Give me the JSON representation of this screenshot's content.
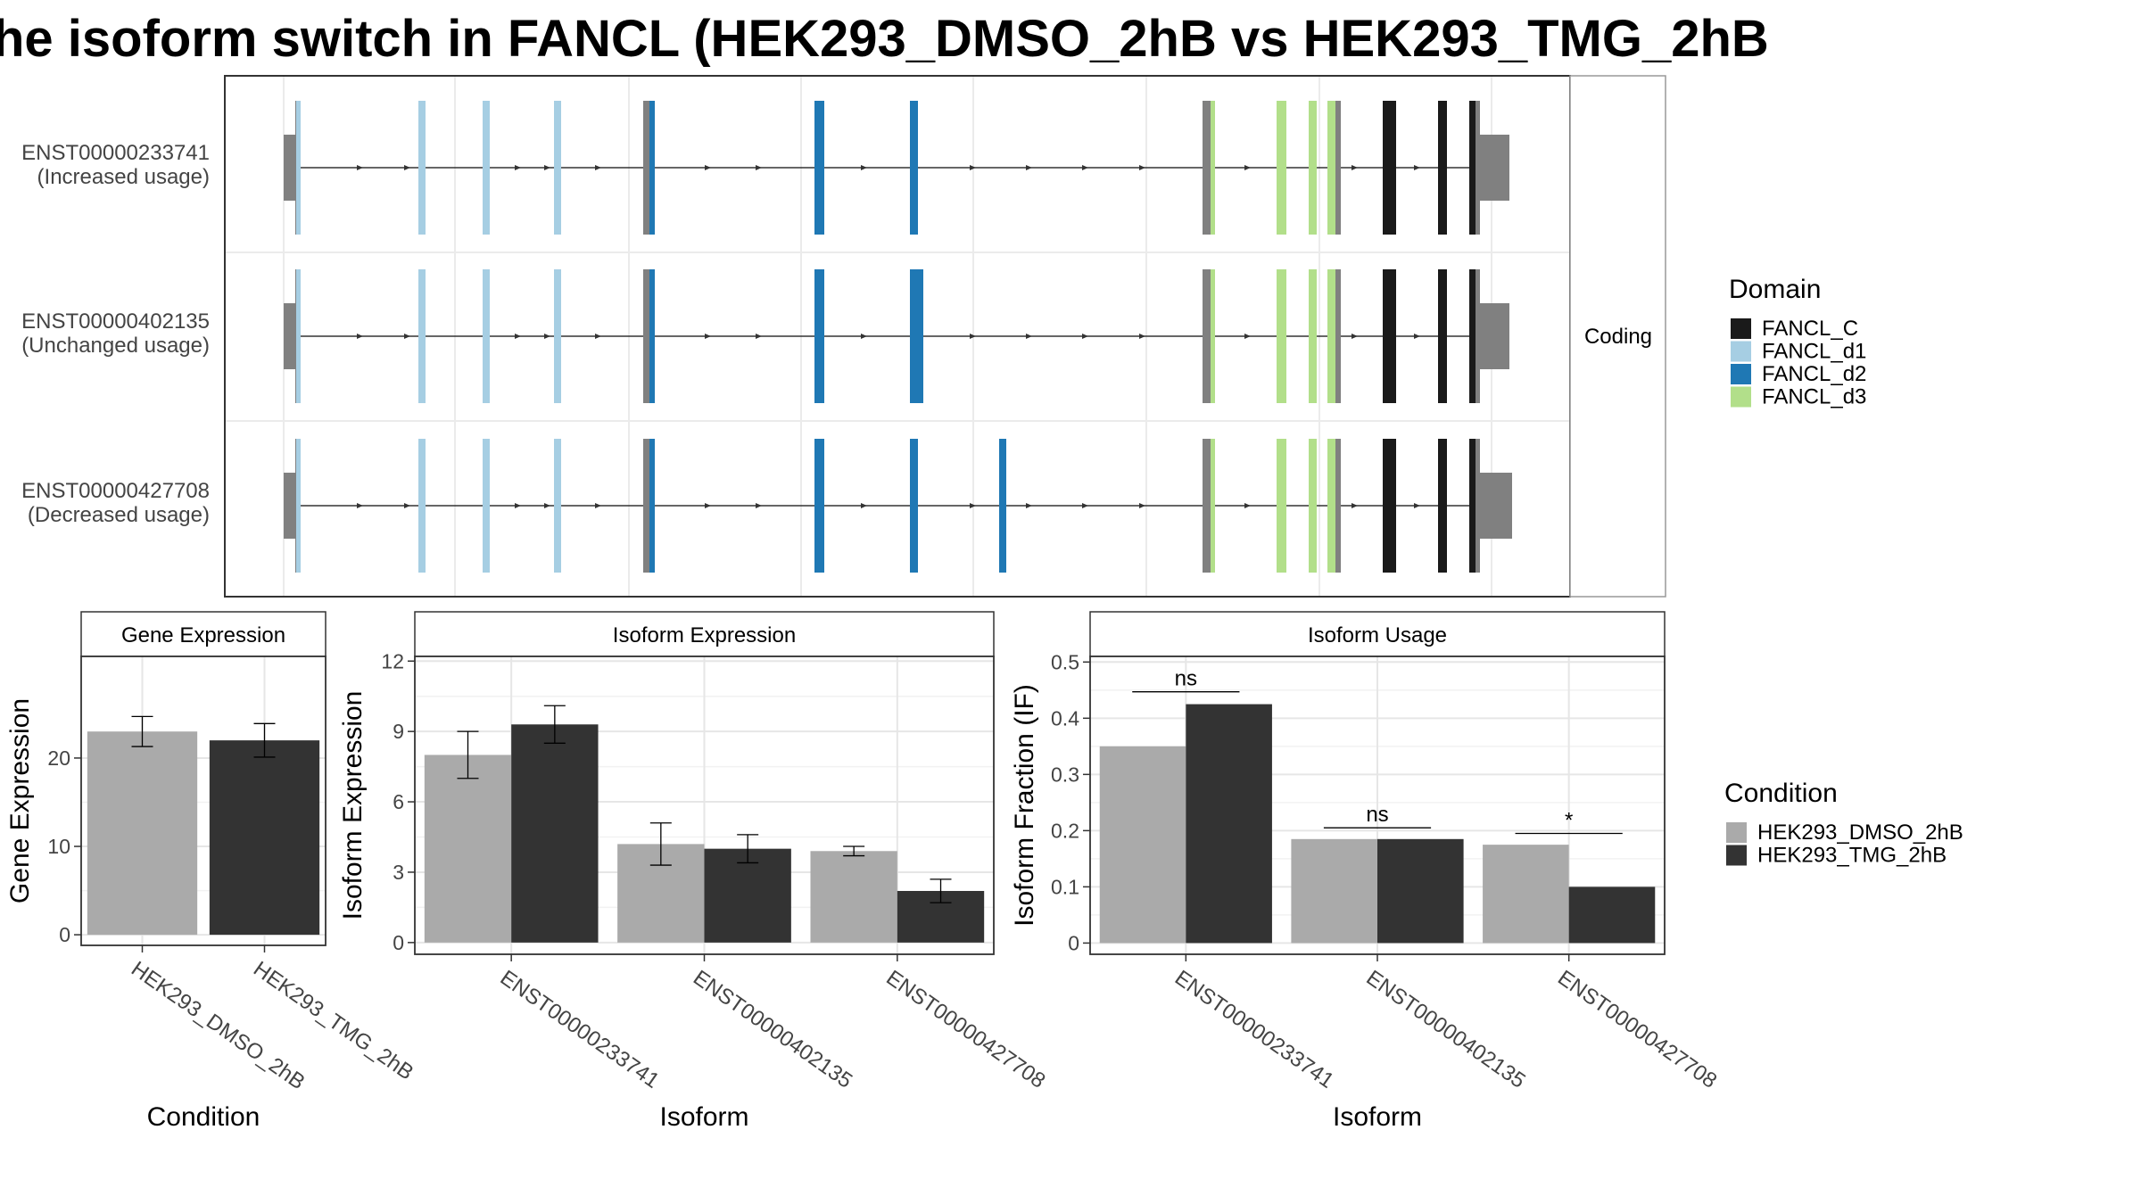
{
  "title": "he isoform switch in FANCL (HEK293_DMSO_2hB vs HEK293_TMG_2hB",
  "colors": {
    "FANCL_C": "#1a1a1a",
    "FANCL_d1": "#a6cee3",
    "FANCL_d2": "#1f78b4",
    "FANCL_d3": "#b2df8a",
    "noncoding": "#808080",
    "HEK293_DMSO_2hB": "#aaaaaa",
    "HEK293_TMG_2hB": "#333333"
  },
  "structure": {
    "facet_label": "Coding",
    "transcripts": [
      {
        "id": "ENST00000233741",
        "label": "(Increased usage)"
      },
      {
        "id": "ENST00000402135",
        "label": "(Unchanged usage)"
      },
      {
        "id": "ENST00000427708",
        "label": "(Decreased usage)"
      }
    ],
    "domain_legend": {
      "title": "Domain",
      "entries": [
        "FANCL_C",
        "FANCL_d1",
        "FANCL_d2",
        "FANCL_d3"
      ]
    }
  },
  "condition_legend": {
    "title": "Condition",
    "entries": [
      "HEK293_DMSO_2hB",
      "HEK293_TMG_2hB"
    ]
  },
  "chart_data": [
    {
      "type": "bar",
      "panel": "Gene Expression",
      "categories": [
        "HEK293_DMSO_2hB",
        "HEK293_TMG_2hB"
      ],
      "values": [
        23.0,
        22.0
      ],
      "errors": [
        [
          21.3,
          24.7
        ],
        [
          20.1,
          23.9
        ]
      ],
      "xlabel": "Condition",
      "ylabel": "Gene Expression",
      "ylim": [
        -1.2,
        31.5
      ],
      "yticks": [
        0,
        10,
        20
      ],
      "grid": true
    },
    {
      "type": "bar",
      "panel": "Isoform Expression",
      "categories": [
        "ENST00000233741",
        "ENST00000402135",
        "ENST00000427708"
      ],
      "series": [
        {
          "name": "HEK293_DMSO_2hB",
          "values": [
            8.0,
            4.2,
            3.9
          ],
          "errors": [
            [
              7.0,
              9.0
            ],
            [
              3.3,
              5.1
            ],
            [
              3.7,
              4.1
            ]
          ]
        },
        {
          "name": "HEK293_TMG_2hB",
          "values": [
            9.3,
            4.0,
            2.2
          ],
          "errors": [
            [
              8.5,
              10.1
            ],
            [
              3.4,
              4.6
            ],
            [
              1.7,
              2.7
            ]
          ]
        }
      ],
      "xlabel": "Isoform",
      "ylabel": "Isoform Expression",
      "ylim": [
        -0.5,
        12.2
      ],
      "yticks": [
        0,
        3,
        6,
        9,
        12
      ],
      "grid": true
    },
    {
      "type": "bar",
      "panel": "Isoform Usage",
      "categories": [
        "ENST00000233741",
        "ENST00000402135",
        "ENST00000427708"
      ],
      "series": [
        {
          "name": "HEK293_DMSO_2hB",
          "values": [
            0.35,
            0.185,
            0.175
          ]
        },
        {
          "name": "HEK293_TMG_2hB",
          "values": [
            0.425,
            0.185,
            0.1
          ]
        }
      ],
      "significance": [
        "ns",
        "ns",
        "*"
      ],
      "significance_level": [
        0.447,
        0.205,
        0.195
      ],
      "xlabel": "Isoform",
      "ylabel": "Isoform Fraction (IF)",
      "ylim": [
        -0.02,
        0.51
      ],
      "yticks": [
        0.0,
        0.1,
        0.2,
        0.3,
        0.4,
        0.5
      ],
      "grid": true
    }
  ]
}
